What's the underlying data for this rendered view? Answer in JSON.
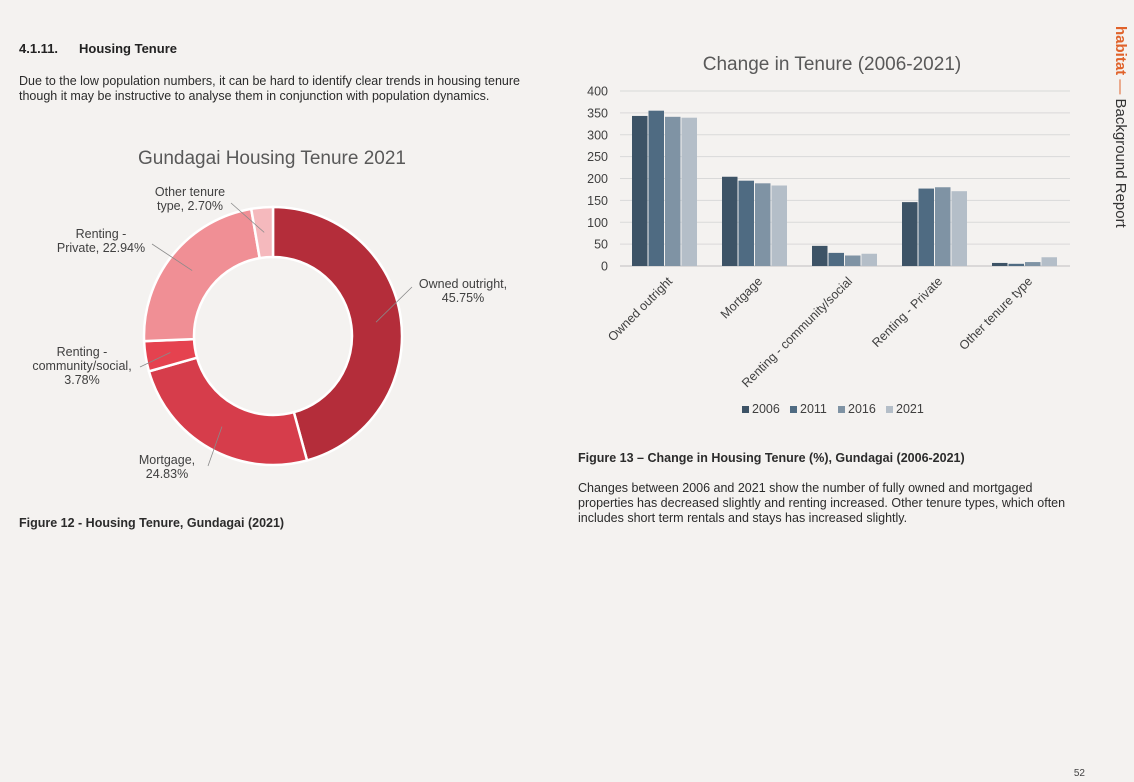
{
  "section": {
    "number": "4.1.11.",
    "title": "Housing Tenure"
  },
  "intro": "Due to the low population numbers, it can be hard to identify clear trends in housing tenure though it may be instructive to analyse them in conjunction with population dynamics.",
  "figure12_caption": "Figure 12 - Housing Tenure, Gundagai (2021)",
  "figure13_caption": "Figure 13 – Change in Housing Tenure (%), Gundagai (2006-2021)",
  "figure13_text": "Changes between 2006 and 2021 show the number of fully owned and mortgaged properties has decreased slightly and renting increased. Other tenure types, which often includes short term rentals and stays has increased slightly.",
  "brand": {
    "name": "habitat",
    "separator": "—",
    "title": "Background Report"
  },
  "page_number": "52",
  "colors": {
    "donut": [
      "#b42d3a",
      "#d63d4b",
      "#e5424f",
      "#f08f95",
      "#f5b9bd"
    ],
    "bars": [
      "#3d5366",
      "#4f6b82",
      "#7f93a4",
      "#b4bec8"
    ]
  },
  "chart_data": [
    {
      "type": "pie",
      "title": "Gundagai Housing Tenure 2021",
      "categories": [
        "Owned outright",
        "Mortgage",
        "Renting - community/social",
        "Renting - Private",
        "Other tenure type"
      ],
      "values": [
        45.75,
        24.83,
        3.78,
        22.94,
        2.7
      ],
      "labels": [
        [
          "Owned outright,",
          "45.75%"
        ],
        [
          "Mortgage,",
          "24.83%"
        ],
        [
          "Renting -",
          "community/social,",
          "3.78%"
        ],
        [
          "Renting -",
          "Private, 22.94%"
        ],
        [
          "Other tenure",
          "type, 2.70%"
        ]
      ]
    },
    {
      "type": "bar",
      "title": "Change in Tenure (2006-2021)",
      "categories": [
        "Owned outright",
        "Mortgage",
        "Renting - community/social",
        "Renting - Private",
        "Other tenure type"
      ],
      "series": [
        {
          "name": "2006",
          "values": [
            343,
            204,
            46,
            146,
            7
          ]
        },
        {
          "name": "2011",
          "values": [
            355,
            195,
            30,
            177,
            5
          ]
        },
        {
          "name": "2016",
          "values": [
            341,
            189,
            24,
            180,
            9
          ]
        },
        {
          "name": "2021",
          "values": [
            339,
            184,
            28,
            171,
            20
          ]
        }
      ],
      "yticks": [
        "0",
        "50",
        "100",
        "150",
        "200",
        "250",
        "300",
        "350",
        "400"
      ],
      "ylim": [
        0,
        400
      ],
      "grid": true,
      "legend": "bottom"
    }
  ]
}
